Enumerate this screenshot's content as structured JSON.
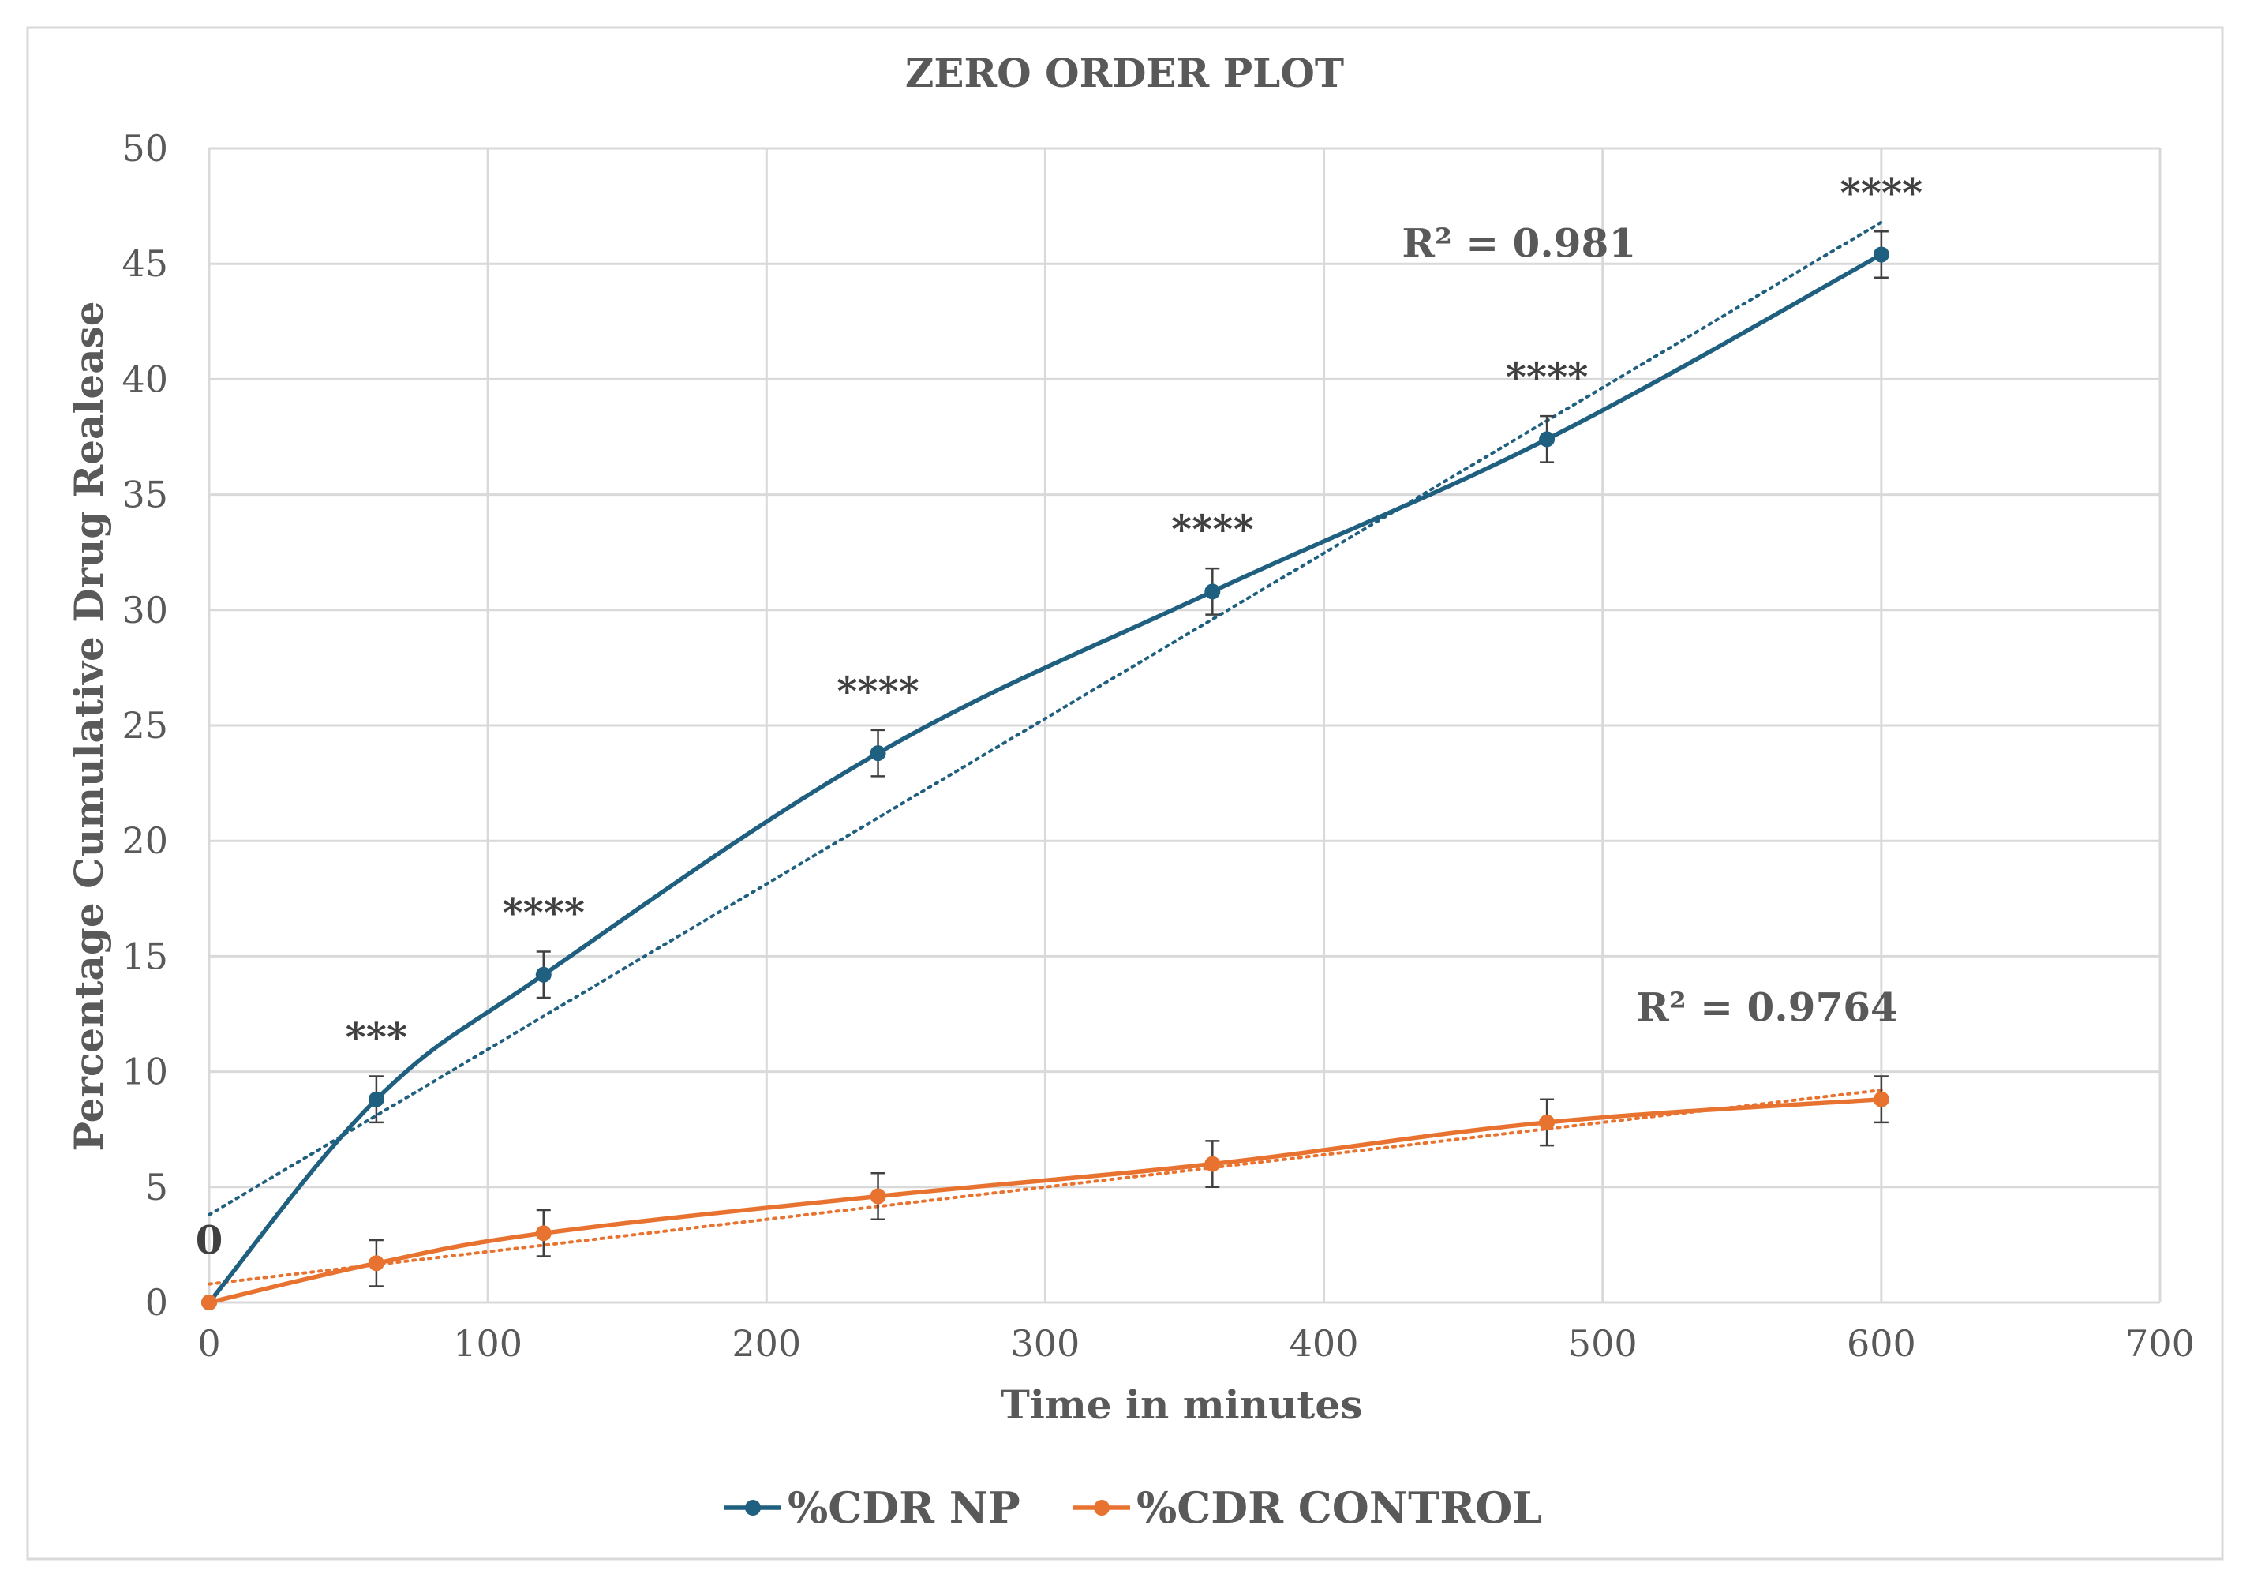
{
  "chart_data": {
    "type": "line",
    "title": "ZERO ORDER PLOT",
    "xlabel": "Time in minutes",
    "ylabel": "Percentage Cumulative Drug Realease",
    "xlim": [
      0,
      700
    ],
    "ylim": [
      0,
      50
    ],
    "x_ticks": [
      "0",
      "100",
      "200",
      "300",
      "400",
      "500",
      "600",
      "700"
    ],
    "y_ticks": [
      "0",
      "5",
      "10",
      "15",
      "20",
      "25",
      "30",
      "35",
      "40",
      "45",
      "50"
    ],
    "grid": true,
    "legend_position": "bottom-center",
    "x": [
      0,
      60,
      120,
      240,
      360,
      480,
      600
    ],
    "series": [
      {
        "name": "%CDR NP",
        "color": "#1f5f7f",
        "values": [
          0,
          8.8,
          14.2,
          23.8,
          30.8,
          37.4,
          45.4
        ],
        "error": [
          0,
          1.0,
          1.0,
          1.0,
          1.0,
          1.0,
          1.0
        ],
        "trendline": {
          "type": "linear",
          "r2_label": "R² = 0.981",
          "y_at_0": 3.8,
          "y_at_600": 46.8
        },
        "significance": [
          "",
          "***",
          "****",
          "****",
          "****",
          "****",
          "****"
        ]
      },
      {
        "name": "%CDR CONTROL",
        "color": "#e87330",
        "values": [
          0,
          1.7,
          3.0,
          4.6,
          6.0,
          7.8,
          8.8
        ],
        "error": [
          0,
          1.0,
          1.0,
          1.0,
          1.0,
          1.0,
          1.0
        ],
        "trendline": {
          "type": "linear",
          "r2_label": "R² = 0.9764",
          "y_at_0": 0.8,
          "y_at_600": 9.2
        }
      }
    ],
    "data_labels": [
      {
        "text": "0",
        "x": 0,
        "y": 2.1
      }
    ]
  }
}
